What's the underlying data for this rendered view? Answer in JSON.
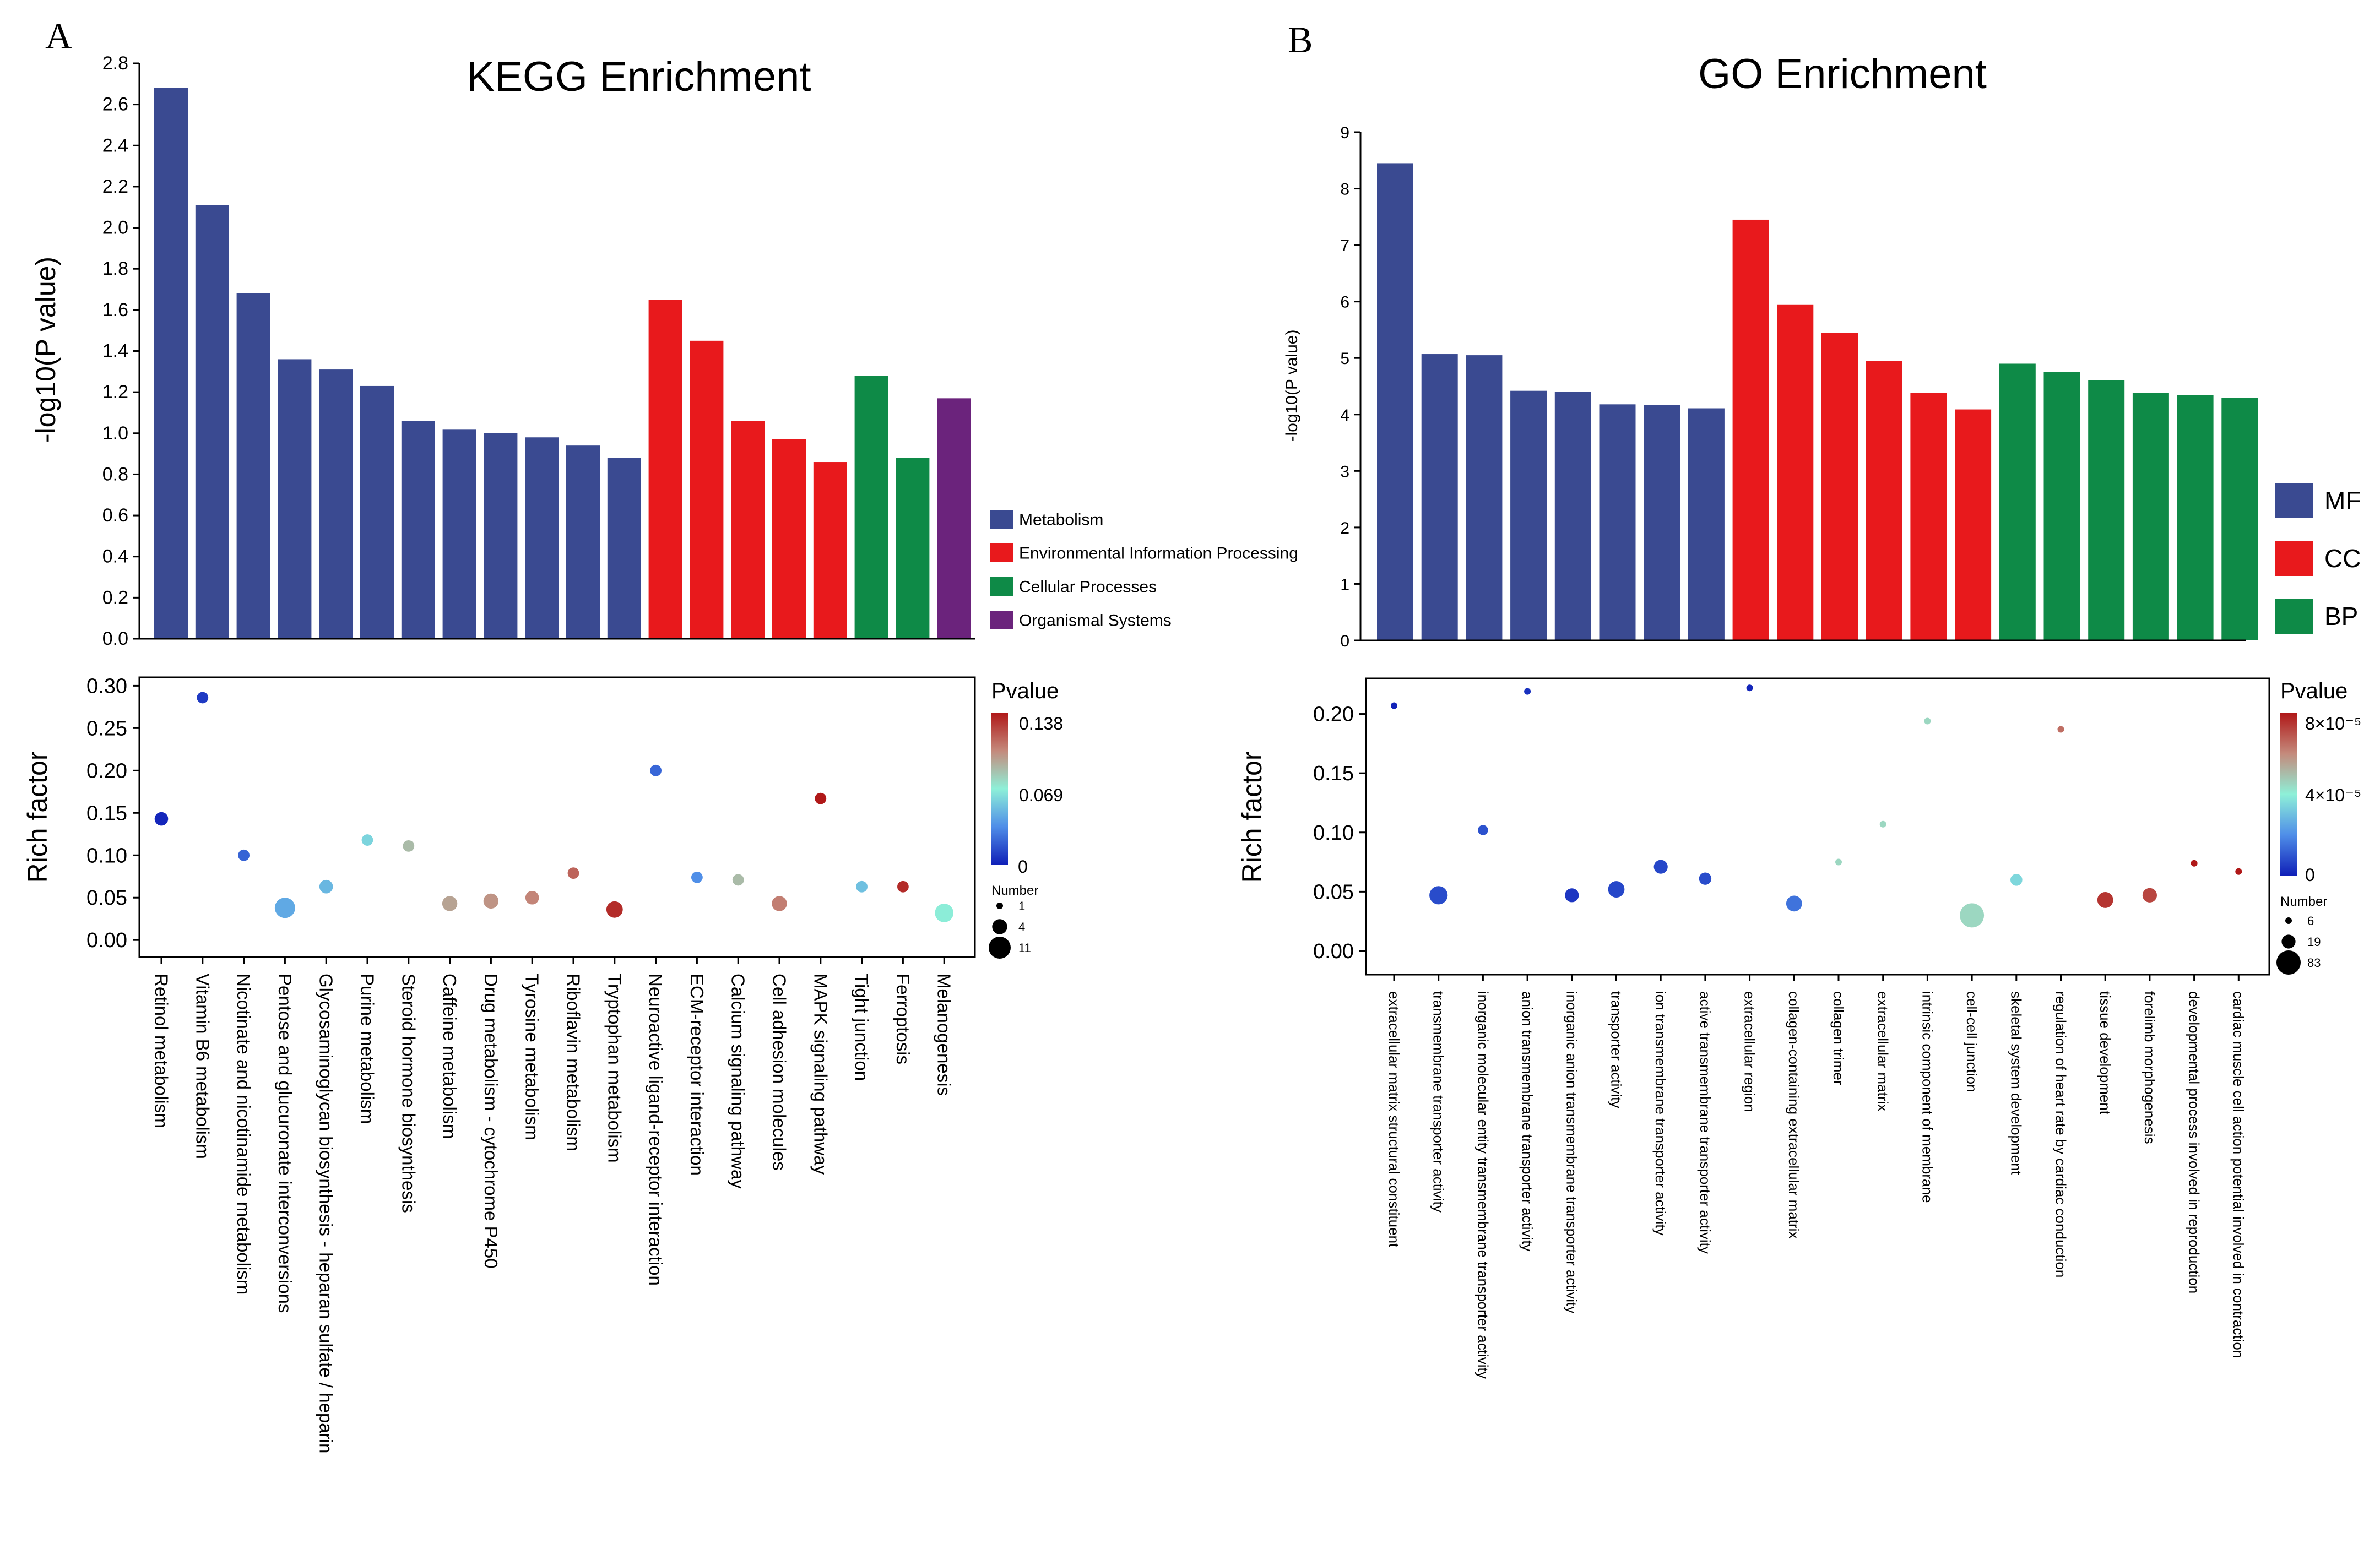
{
  "panels": [
    {
      "letter": "A"
    },
    {
      "letter": "B"
    }
  ],
  "chart_data": [
    {
      "id": "kegg_bar",
      "type": "bar",
      "title": "KEGG Enrichment",
      "ylabel": "-log10(P value)",
      "ylim": [
        0,
        2.8
      ],
      "yticks": [
        0.0,
        0.2,
        0.4,
        0.6,
        0.8,
        1.0,
        1.2,
        1.4,
        1.6,
        1.8,
        2.0,
        2.2,
        2.4,
        2.6,
        2.8
      ],
      "categories": [
        "Retinol metabolism",
        "Vitamin B6 metabolism",
        "Nicotinate and nicotinamide metabolism",
        "Pentose and glucuronate interconversions",
        "Glycosaminoglycan biosynthesis - heparan sulfate / heparin",
        "Purine metabolism",
        "Steroid hormone biosynthesis",
        "Caffeine metabolism",
        "Drug metabolism - cytochrome P450",
        "Tyrosine metabolism",
        "Riboflavin metabolism",
        "Tryptophan metabolism",
        "Neuroactive ligand-receptor interaction",
        "ECM-receptor interaction",
        "Calcium signaling pathway",
        "Cell adhesion molecules",
        "MAPK signaling pathway",
        "Tight junction",
        "Ferroptosis",
        "Melanogenesis"
      ],
      "values": [
        2.68,
        2.11,
        1.68,
        1.36,
        1.31,
        1.23,
        1.06,
        1.02,
        1.0,
        0.98,
        0.94,
        0.88,
        1.65,
        1.45,
        1.06,
        0.97,
        0.86,
        1.28,
        0.88,
        1.17
      ],
      "groups": [
        "Metabolism",
        "Metabolism",
        "Metabolism",
        "Metabolism",
        "Metabolism",
        "Metabolism",
        "Metabolism",
        "Metabolism",
        "Metabolism",
        "Metabolism",
        "Metabolism",
        "Metabolism",
        "Environmental Information Processing",
        "Environmental Information Processing",
        "Environmental Information Processing",
        "Environmental Information Processing",
        "Environmental Information Processing",
        "Cellular Processes",
        "Cellular Processes",
        "Organismal Systems"
      ],
      "legend": [
        {
          "name": "Metabolism",
          "color": "#3a4a91"
        },
        {
          "name": "Environmental Information Processing",
          "color": "#e8191c"
        },
        {
          "name": "Cellular Processes",
          "color": "#0e8a47"
        },
        {
          "name": "Organismal Systems",
          "color": "#6b237c"
        }
      ],
      "legend_position": "right"
    },
    {
      "id": "kegg_bubble",
      "type": "scatter",
      "ylabel": "Rich factor",
      "ylim": [
        -0.02,
        0.31
      ],
      "yticks": [
        "0.00",
        "0.05",
        "0.10",
        "0.15",
        "0.20",
        "0.25",
        "0.30"
      ],
      "categories": [
        "Retinol metabolism",
        "Vitamin B6 metabolism",
        "Nicotinate and nicotinamide metabolism",
        "Pentose and glucuronate interconversions",
        "Glycosaminoglycan biosynthesis - heparan sulfate / heparin",
        "Purine metabolism",
        "Steroid hormone biosynthesis",
        "Caffeine metabolism",
        "Drug metabolism - cytochrome P450",
        "Tyrosine metabolism",
        "Riboflavin metabolism",
        "Tryptophan metabolism",
        "Neuroactive ligand-receptor interaction",
        "ECM-receptor interaction",
        "Calcium signaling pathway",
        "Cell adhesion molecules",
        "MAPK signaling pathway",
        "Tight junction",
        "Ferroptosis",
        "Melanogenesis"
      ],
      "rich_factor": [
        0.143,
        0.286,
        0.1,
        0.038,
        0.063,
        0.118,
        0.111,
        0.043,
        0.046,
        0.05,
        0.079,
        0.036,
        0.2,
        0.074,
        0.071,
        0.043,
        0.167,
        0.063,
        0.063,
        0.032
      ],
      "pvalue": [
        0.002,
        0.008,
        0.021,
        0.044,
        0.049,
        0.059,
        0.087,
        0.095,
        0.1,
        0.105,
        0.115,
        0.132,
        0.022,
        0.035,
        0.087,
        0.107,
        0.138,
        0.052,
        0.132,
        0.068
      ],
      "number": [
        3,
        2,
        2,
        9,
        3,
        2,
        2,
        4,
        4,
        3,
        2,
        5,
        2,
        2,
        2,
        4,
        2,
        2,
        2,
        7
      ],
      "color_legend": {
        "title": "Pvalue",
        "max_label": "0.138",
        "mid_label": "0.069",
        "min_label": "0",
        "range": [
          0,
          0.138
        ]
      },
      "size_legend": {
        "title": "Number",
        "labels": [
          "1",
          "4",
          "11"
        ],
        "values": [
          1,
          4,
          11
        ]
      }
    },
    {
      "id": "go_bar",
      "type": "bar",
      "title": "GO Enrichment",
      "ylabel": "-log10(P value)",
      "ylim": [
        0,
        9
      ],
      "yticks": [
        0,
        1,
        2,
        3,
        4,
        5,
        6,
        7,
        8,
        9
      ],
      "categories": [
        "extracellular matrix structural constituent",
        "transmembrane transporter activity",
        "inorganic molecular entity transmembrane transporter activity",
        "anion transmembrane transporter activity",
        "inorganic anion transmembrane transporter activity",
        "transporter activity",
        "ion transmembrane transporter activity",
        "active transmembrane transporter activity",
        "extracellular region",
        "collagen-containing extracellular matrix",
        "collagen trimer",
        "extracellular matrix",
        "intrinsic component of membrane",
        "cell-cell junction",
        "skeletal system development",
        "regulation of heart rate by cardiac conduction",
        "tissue development",
        "forelimb morphogenesis",
        "developmental process involved in reproduction",
        "cardiac muscle cell action potential involved in contraction"
      ],
      "values": [
        8.45,
        5.07,
        5.05,
        4.42,
        4.4,
        4.18,
        4.17,
        4.11,
        7.45,
        5.95,
        5.45,
        4.95,
        4.38,
        4.09,
        4.9,
        4.75,
        4.61,
        4.38,
        4.34,
        4.3
      ],
      "groups": [
        "MF",
        "MF",
        "MF",
        "MF",
        "MF",
        "MF",
        "MF",
        "MF",
        "CC",
        "CC",
        "CC",
        "CC",
        "CC",
        "CC",
        "BP",
        "BP",
        "BP",
        "BP",
        "BP",
        "BP"
      ],
      "legend": [
        {
          "name": "MF",
          "color": "#3a4a91"
        },
        {
          "name": "CC",
          "color": "#e8191c"
        },
        {
          "name": "BP",
          "color": "#0e8a47"
        }
      ],
      "legend_position": "right"
    },
    {
      "id": "go_bubble",
      "type": "scatter",
      "ylabel": "Rich factor",
      "ylim": [
        -0.02,
        0.23
      ],
      "yticks": [
        "0.00",
        "0.05",
        "0.10",
        "0.15",
        "0.20"
      ],
      "categories": [
        "extracellular matrix structural constituent",
        "transmembrane transporter activity",
        "inorganic molecular entity transmembrane transporter activity",
        "anion transmembrane transporter activity",
        "inorganic anion transmembrane transporter activity",
        "transporter activity",
        "ion transmembrane transporter activity",
        "active transmembrane transporter activity",
        "extracellular region",
        "collagen-containing extracellular matrix",
        "collagen trimer",
        "extracellular matrix",
        "intrinsic component of membrane",
        "cell-cell junction",
        "skeletal system development",
        "regulation of heart rate by cardiac conduction",
        "tissue development",
        "forelimb morphogenesis",
        "developmental process involved in reproduction",
        "cardiac muscle cell action potential involved in contraction"
      ],
      "rich_factor": [
        0.207,
        0.047,
        0.102,
        0.219,
        0.047,
        0.052,
        0.071,
        0.061,
        0.222,
        0.04,
        0.075,
        0.107,
        0.194,
        0.03,
        0.06,
        0.187,
        0.043,
        0.047,
        0.074,
        0.067
      ],
      "pvalue": [
        5e-07,
        8e-06,
        9e-06,
        3e-06,
        4e-06,
        7e-06,
        7e-06,
        8e-06,
        1e-06,
        1.5e-05,
        4.5e-05,
        4.5e-05,
        4.5e-05,
        4.5e-05,
        3.5e-05,
        6.5e-05,
        7.5e-05,
        7.2e-05,
        8e-05,
        8.2e-05
      ],
      "number": [
        6,
        40,
        9,
        6,
        19,
        30,
        19,
        14,
        6,
        27,
        6,
        6,
        6,
        83,
        13,
        6,
        27,
        21,
        6,
        6
      ],
      "color_legend": {
        "title": "Pvalue",
        "max_label": "8×10⁻⁵",
        "mid_label": "4×10⁻⁵",
        "min_label": "0",
        "range": [
          0,
          8e-05
        ]
      },
      "size_legend": {
        "title": "Number",
        "labels": [
          "6",
          "19",
          "83"
        ],
        "values": [
          6,
          19,
          83
        ]
      }
    }
  ]
}
